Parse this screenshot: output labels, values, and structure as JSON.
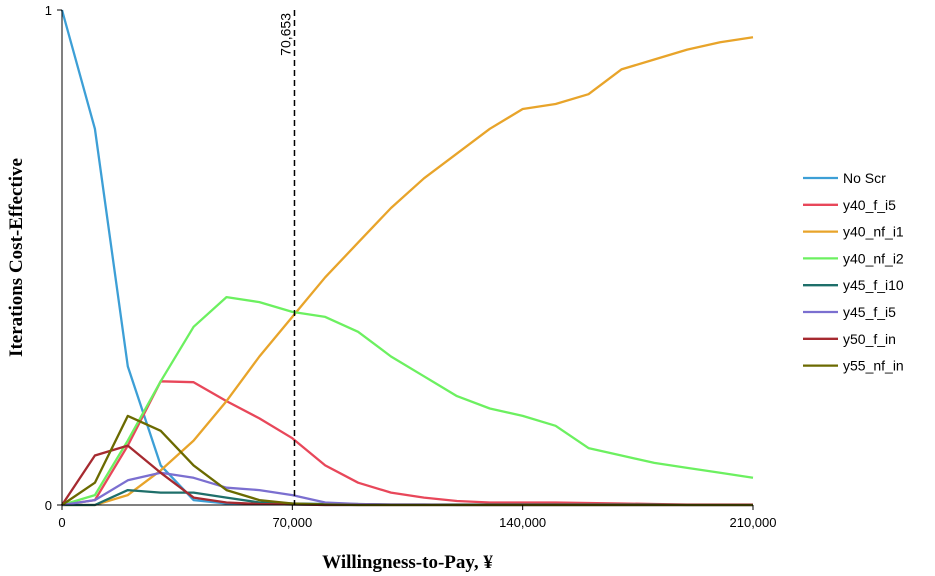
{
  "chart_data": {
    "type": "line",
    "xlabel": "Willingness-to-Pay, ¥",
    "ylabel": "Iterations Cost-Effective",
    "xlim": [
      0,
      210000
    ],
    "ylim": [
      0,
      1
    ],
    "x_ticks": [
      "0",
      "70,000",
      "140,000",
      "210,000"
    ],
    "x_tick_values": [
      0,
      70000,
      140000,
      210000
    ],
    "y_ticks": [
      "0",
      "1"
    ],
    "y_tick_values": [
      0,
      1
    ],
    "grid": false,
    "legend_position": "right",
    "reference_line": {
      "x": 70653,
      "label": "70,653"
    },
    "x": [
      0,
      10000,
      20000,
      30000,
      40000,
      50000,
      60000,
      70000,
      80000,
      90000,
      100000,
      110000,
      120000,
      130000,
      140000,
      150000,
      160000,
      170000,
      180000,
      190000,
      200000,
      210000
    ],
    "series": [
      {
        "name": "No Scr",
        "color": "#3d9fd6",
        "values": [
          1.0,
          0.76,
          0.28,
          0.08,
          0.01,
          0.003,
          0.002,
          0.001,
          0,
          0,
          0,
          0,
          0,
          0,
          0,
          0,
          0,
          0,
          0,
          0,
          0,
          0
        ]
      },
      {
        "name": "y40_f_i5",
        "color": "#e8475a",
        "values": [
          0,
          0.01,
          0.12,
          0.25,
          0.248,
          0.21,
          0.175,
          0.135,
          0.08,
          0.045,
          0.025,
          0.015,
          0.008,
          0.005,
          0.005,
          0.005,
          0.004,
          0.003,
          0.002,
          0.001,
          0.001,
          0.001
        ]
      },
      {
        "name": "y40_nf_i1",
        "color": "#e8a42a",
        "values": [
          0,
          0,
          0.02,
          0.07,
          0.13,
          0.21,
          0.3,
          0.38,
          0.46,
          0.53,
          0.6,
          0.66,
          0.71,
          0.76,
          0.8,
          0.81,
          0.83,
          0.88,
          0.9,
          0.92,
          0.935,
          0.945
        ]
      },
      {
        "name": "y40_nf_i2",
        "color": "#6cf060",
        "values": [
          0,
          0.02,
          0.13,
          0.25,
          0.36,
          0.42,
          0.41,
          0.39,
          0.38,
          0.35,
          0.3,
          0.26,
          0.22,
          0.195,
          0.18,
          0.16,
          0.115,
          0.1,
          0.085,
          0.075,
          0.065,
          0.055
        ]
      },
      {
        "name": "y45_f_i10",
        "color": "#1e6f6a",
        "values": [
          0,
          0,
          0.03,
          0.025,
          0.025,
          0.015,
          0.005,
          0.003,
          0.002,
          0.002,
          0.001,
          0.001,
          0.001,
          0.001,
          0.001,
          0.001,
          0.001,
          0.001,
          0.001,
          0,
          0,
          0
        ]
      },
      {
        "name": "y45_f_i5",
        "color": "#7b6fd0",
        "values": [
          0,
          0.01,
          0.05,
          0.065,
          0.055,
          0.035,
          0.03,
          0.02,
          0.005,
          0.002,
          0.001,
          0.001,
          0,
          0,
          0,
          0,
          0,
          0,
          0,
          0,
          0,
          0
        ]
      },
      {
        "name": "y50_f_in",
        "color": "#a62a30",
        "values": [
          0,
          0.1,
          0.12,
          0.065,
          0.015,
          0.005,
          0.002,
          0.001,
          0,
          0,
          0,
          0,
          0,
          0,
          0,
          0,
          0,
          0,
          0,
          0,
          0,
          0
        ]
      },
      {
        "name": "y55_nf_in",
        "color": "#6b6a00",
        "values": [
          0,
          0.045,
          0.18,
          0.15,
          0.08,
          0.03,
          0.01,
          0.003,
          0.001,
          0,
          0,
          0,
          0,
          0,
          0,
          0,
          0,
          0,
          0,
          0,
          0,
          0
        ]
      }
    ]
  }
}
